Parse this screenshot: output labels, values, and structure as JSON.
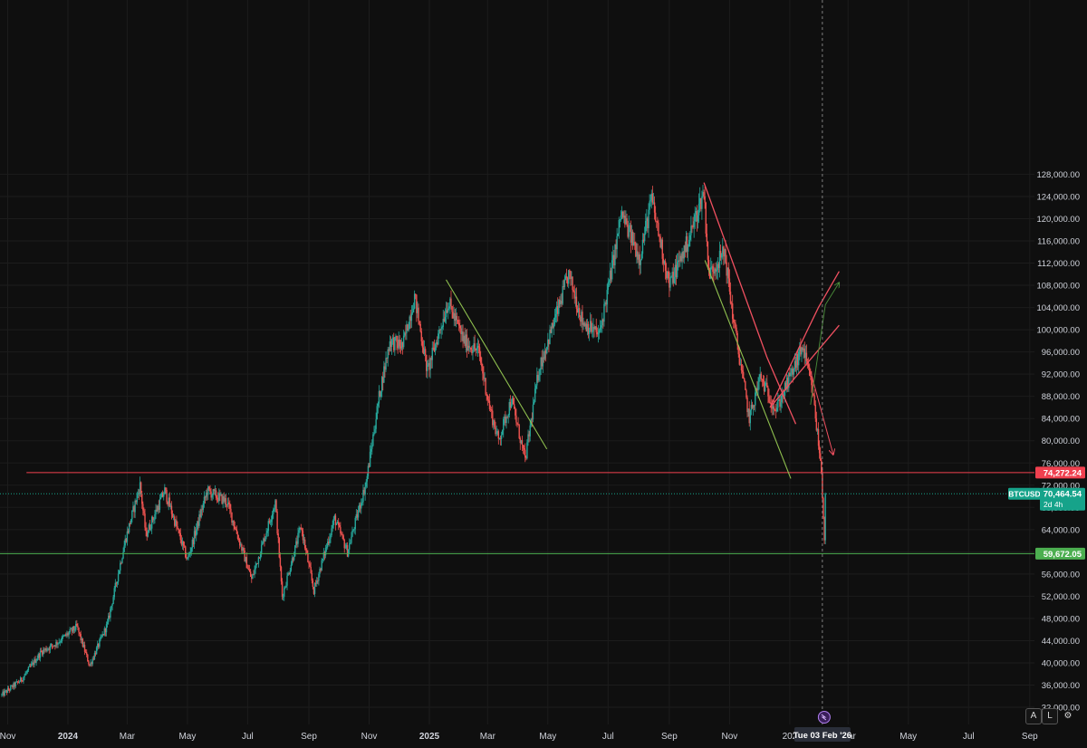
{
  "chart_data": {
    "type": "candlestick",
    "symbol": "BTCUSD",
    "ylim": [
      30000,
      129000
    ],
    "y_ticks": [
      32000,
      36000,
      40000,
      44000,
      48000,
      52000,
      56000,
      60000,
      64000,
      68000,
      72000,
      76000,
      80000,
      84000,
      88000,
      92000,
      96000,
      100000,
      104000,
      108000,
      112000,
      116000,
      120000,
      124000,
      128000
    ],
    "x_ticks": [
      {
        "date": "2023-11-01",
        "label": "Nov",
        "bold": false
      },
      {
        "date": "2024-01-01",
        "label": "2024",
        "bold": true
      },
      {
        "date": "2024-03-01",
        "label": "Mar",
        "bold": false
      },
      {
        "date": "2024-05-01",
        "label": "May",
        "bold": false
      },
      {
        "date": "2024-07-01",
        "label": "Jul",
        "bold": false
      },
      {
        "date": "2024-09-01",
        "label": "Sep",
        "bold": false
      },
      {
        "date": "2024-11-01",
        "label": "Nov",
        "bold": false
      },
      {
        "date": "2025-01-01",
        "label": "2025",
        "bold": true
      },
      {
        "date": "2025-03-01",
        "label": "Mar",
        "bold": false
      },
      {
        "date": "2025-05-01",
        "label": "May",
        "bold": false
      },
      {
        "date": "2025-07-01",
        "label": "Jul",
        "bold": false
      },
      {
        "date": "2025-09-01",
        "label": "Sep",
        "bold": false
      },
      {
        "date": "2025-11-01",
        "label": "Nov",
        "bold": false
      },
      {
        "date": "2026-01-01",
        "label": "202",
        "bold": false
      },
      {
        "date": "2026-03-01",
        "label": "Mar",
        "bold": false
      },
      {
        "date": "2026-05-01",
        "label": "May",
        "bold": false
      },
      {
        "date": "2026-07-01",
        "label": "Jul",
        "bold": false
      },
      {
        "date": "2026-09-01",
        "label": "Sep",
        "bold": false
      }
    ],
    "price_path": [
      [
        "2023-10-26",
        34200
      ],
      [
        "2023-11-15",
        37000
      ],
      [
        "2023-12-05",
        42000
      ],
      [
        "2023-12-20",
        43500
      ],
      [
        "2024-01-10",
        46500
      ],
      [
        "2024-01-23",
        39500
      ],
      [
        "2024-02-10",
        47000
      ],
      [
        "2024-02-28",
        62000
      ],
      [
        "2024-03-14",
        72000
      ],
      [
        "2024-03-20",
        63000
      ],
      [
        "2024-04-08",
        71000
      ],
      [
        "2024-05-01",
        58500
      ],
      [
        "2024-05-21",
        71000
      ],
      [
        "2024-06-10",
        69000
      ],
      [
        "2024-07-05",
        55000
      ],
      [
        "2024-07-29",
        69000
      ],
      [
        "2024-08-05",
        52000
      ],
      [
        "2024-08-24",
        64500
      ],
      [
        "2024-09-06",
        53000
      ],
      [
        "2024-09-27",
        66000
      ],
      [
        "2024-10-10",
        60000
      ],
      [
        "2024-10-29",
        72500
      ],
      [
        "2024-11-12",
        89000
      ],
      [
        "2024-11-22",
        98000
      ],
      [
        "2024-12-05",
        97000
      ],
      [
        "2024-12-17",
        106000
      ],
      [
        "2024-12-30",
        92500
      ],
      [
        "2025-01-20",
        105000
      ],
      [
        "2025-02-05",
        98000
      ],
      [
        "2025-02-20",
        96000
      ],
      [
        "2025-03-03",
        86000
      ],
      [
        "2025-03-12",
        80000
      ],
      [
        "2025-03-25",
        87500
      ],
      [
        "2025-04-08",
        76500
      ],
      [
        "2025-04-22",
        93000
      ],
      [
        "2025-05-12",
        104000
      ],
      [
        "2025-05-22",
        110000
      ],
      [
        "2025-06-05",
        101500
      ],
      [
        "2025-06-22",
        99000
      ],
      [
        "2025-07-10",
        116000
      ],
      [
        "2025-07-14",
        121000
      ],
      [
        "2025-08-02",
        113000
      ],
      [
        "2025-08-14",
        123500
      ],
      [
        "2025-09-01",
        108000
      ],
      [
        "2025-09-20",
        116000
      ],
      [
        "2025-10-06",
        125000
      ],
      [
        "2025-10-11",
        110000
      ],
      [
        "2025-10-27",
        114000
      ],
      [
        "2025-11-05",
        101500
      ],
      [
        "2025-11-21",
        84000
      ],
      [
        "2025-12-02",
        91500
      ],
      [
        "2025-12-18",
        85500
      ],
      [
        "2026-01-05",
        93000
      ],
      [
        "2026-01-14",
        97000
      ],
      [
        "2026-01-24",
        89000
      ],
      [
        "2026-01-31",
        78000
      ],
      [
        "2026-02-02",
        74500
      ],
      [
        "2026-02-05",
        62500
      ],
      [
        "2026-02-06",
        70464.54
      ]
    ],
    "trend_lines": [
      {
        "color": "#8fc04f",
        "width": 1.1,
        "points": [
          [
            "2025-01-18",
            109000
          ],
          [
            "2025-04-30",
            78500
          ]
        ]
      },
      {
        "color": "#8fc04f",
        "width": 1.1,
        "points": [
          [
            "2025-10-07",
            112500
          ],
          [
            "2026-01-02",
            73200
          ]
        ]
      },
      {
        "color": "#f05060",
        "width": 1.3,
        "points": [
          [
            "2025-10-06",
            126500
          ],
          [
            "2025-12-09",
            95000
          ],
          [
            "2026-01-07",
            83000
          ]
        ]
      },
      {
        "color": "#f05060",
        "width": 1.3,
        "points": [
          [
            "2025-12-12",
            86000
          ],
          [
            "2026-01-30",
            104000
          ],
          [
            "2026-02-20",
            110500
          ]
        ]
      },
      {
        "color": "#f05060",
        "width": 1.3,
        "points": [
          [
            "2025-12-12",
            86000
          ],
          [
            "2026-02-20",
            100800
          ]
        ]
      },
      {
        "color": "#f05060",
        "width": 1.0,
        "points": [
          [
            "2026-01-22",
            92500
          ],
          [
            "2026-02-14",
            77500
          ]
        ],
        "arrow": true
      },
      {
        "color": "#4a8f3a",
        "width": 0.9,
        "points": [
          [
            "2026-01-22",
            86500
          ],
          [
            "2026-02-06",
            104500
          ],
          [
            "2026-02-20",
            108500
          ]
        ],
        "arrow": true
      }
    ],
    "horizontal_levels": [
      {
        "price": 74272.24,
        "label": "74,272.24",
        "color": "#f0404f",
        "from": "2023-11-20"
      },
      {
        "price": 59672.05,
        "label": "59,672.05",
        "color": "#4caf50",
        "from": "2023-10-20"
      }
    ],
    "last_price": {
      "symbol": "BTCUSD",
      "value": "70,464.54",
      "countdown": "2d 4h",
      "price": 70464.54,
      "color": "#16a38a"
    },
    "crosshair": {
      "date": "2026-02-03",
      "label": "Tue 03 Feb '26"
    },
    "colors": {
      "up": "#26a69a",
      "down": "#ef5350",
      "background": "#0f0f0f",
      "axis_text": "#d1d4dc",
      "grid": "#1c1c1c"
    }
  },
  "controls": {
    "auto_label": "A",
    "log_label": "L",
    "settings_icon": "gear-icon"
  }
}
